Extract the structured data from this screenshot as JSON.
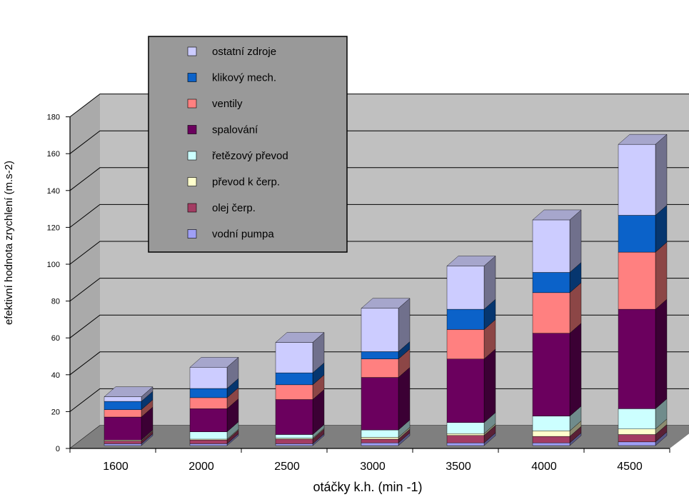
{
  "chart_data": {
    "type": "bar",
    "stacked": true,
    "three_d": true,
    "title": "",
    "xlabel": "otáčky k.h. (min -1)",
    "ylabel": "efektivní hodnota zrychlení (m.s-2)",
    "ylim": [
      0,
      180
    ],
    "yticks": [
      "0",
      "20",
      "40",
      "60",
      "80",
      "100",
      "120",
      "140",
      "160",
      "180"
    ],
    "grid": true,
    "legend_position": "top-left",
    "categories": [
      "1600",
      "2000",
      "2500",
      "3000",
      "3500",
      "4000",
      "4500"
    ],
    "series": [
      {
        "name": "vodní pumpa",
        "color": "#9f9ff5",
        "values": [
          1,
          1,
          1,
          1.5,
          1.5,
          1.5,
          2
        ]
      },
      {
        "name": "olej čerp.",
        "color": "#a33c63",
        "values": [
          1.5,
          2,
          2.5,
          2,
          4,
          3.5,
          4
        ]
      },
      {
        "name": "převod k čerp.",
        "color": "#ffffcc",
        "values": [
          0.5,
          0.5,
          0.5,
          1,
          1,
          3,
          3
        ]
      },
      {
        "name": "řetězový převod",
        "color": "#ccffff",
        "values": [
          0,
          4,
          2,
          4,
          6,
          8,
          11
        ]
      },
      {
        "name": "spalování",
        "color": "#6b005e",
        "values": [
          12.5,
          12.5,
          19,
          28.5,
          34.5,
          45,
          54
        ]
      },
      {
        "name": "ventily",
        "color": "#ff8080",
        "values": [
          4,
          6,
          8,
          10,
          16,
          22,
          31
        ]
      },
      {
        "name": "klikový mech.",
        "color": "#0b62c9",
        "values": [
          4.5,
          5,
          6.5,
          4,
          11,
          11,
          20
        ]
      },
      {
        "name": "ostatní zdroje",
        "color": "#ccccff",
        "values": [
          2.5,
          11.5,
          16.5,
          23.5,
          23.5,
          28.5,
          38.5
        ]
      }
    ]
  }
}
